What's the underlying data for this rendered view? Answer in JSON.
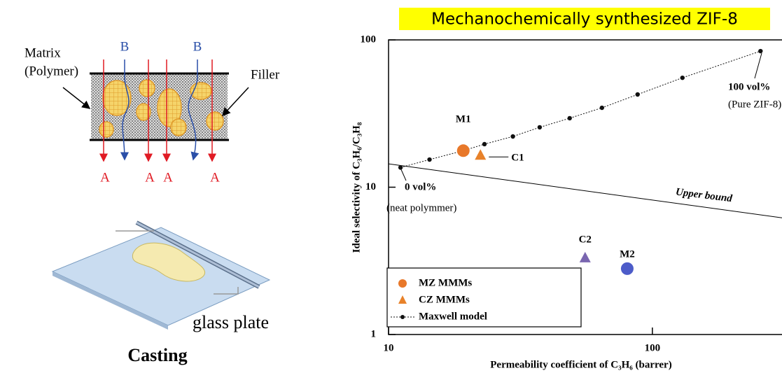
{
  "diagram": {
    "matrix_label": "Matrix",
    "polymer_label": "(Polymer)",
    "filler_label": "Filler",
    "b_labels": [
      "B",
      "B"
    ],
    "a_labels": [
      "A",
      "A",
      "A",
      "A"
    ],
    "plate_label": "glass plate",
    "caption": "Casting"
  },
  "chart_data": {
    "type": "scatter",
    "title": "Mechanochemically synthesized ZIF-8",
    "x_label": "Permeability coefficient of C₃H₆ (barrer)",
    "y_label": "Ideal selectivity of C₃H₆/C₃H₈",
    "log_x": true,
    "log_y": true,
    "xlim": [
      10,
      310
    ],
    "ylim": [
      1,
      100
    ],
    "xticks": [
      10,
      100
    ],
    "yticks": [
      1,
      10,
      100
    ],
    "series": [
      {
        "name": "Maxwell model",
        "marker": "line-dot",
        "color": "#111111",
        "x": [
          11.1,
          14.3,
          19.2,
          23.1,
          29.6,
          37.4,
          48.6,
          64.4,
          87.9,
          130,
          257
        ],
        "values": [
          13.6,
          15.4,
          17.7,
          19.6,
          22.1,
          25.5,
          29.4,
          34.6,
          42.6,
          55.3,
          83.9
        ]
      },
      {
        "name": "MZ MMMs",
        "marker": "circle",
        "colors": [
          "#e8782a",
          "#4d5cc9"
        ],
        "x": [
          19.2,
          80.3
        ],
        "values": [
          17.7,
          2.8
        ],
        "point_labels": [
          "M1",
          "M2"
        ]
      },
      {
        "name": "CZ MMMs",
        "marker": "triangle",
        "colors": [
          "#e8822a",
          "#7a66b0"
        ],
        "x": [
          22.3,
          55.6
        ],
        "values": [
          16.4,
          3.3
        ],
        "point_labels": [
          "C1",
          "C2"
        ]
      }
    ],
    "upper_bound": {
      "label": "Upper bound",
      "x": [
        10,
        310
      ],
      "values": [
        14.4,
        6.2
      ]
    },
    "annotations": [
      "0 vol%",
      "(neat polymmer)",
      "100 vol%",
      "(Pure ZIF-8)"
    ]
  }
}
